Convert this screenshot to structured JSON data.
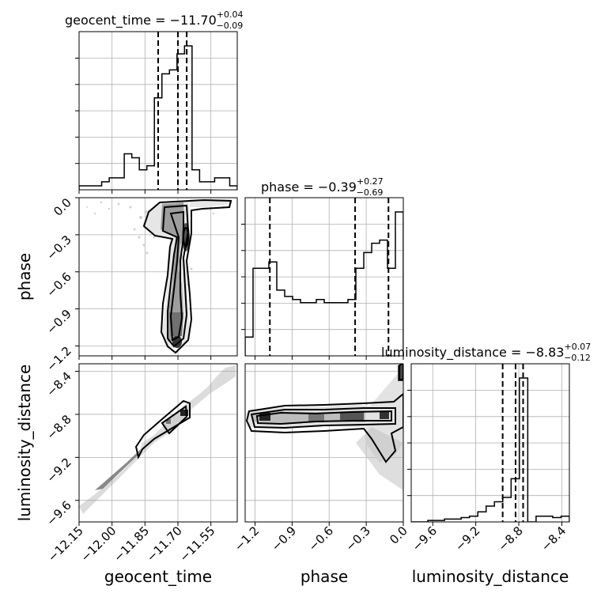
{
  "chart_data": {
    "type": "corner",
    "parameters": [
      "geocent_time",
      "phase",
      "luminosity_distance"
    ],
    "titles": [
      {
        "param": "geocent_time",
        "prefix": "geocent_time = ",
        "median": "−11.70",
        "plus": "+0.04",
        "minus": "−0.09"
      },
      {
        "param": "phase",
        "prefix": "phase = ",
        "median": "−0.39",
        "plus": "+0.27",
        "minus": "−0.69"
      },
      {
        "param": "luminosity_distance",
        "prefix": "luminosity_distance = ",
        "median": "−8.83",
        "plus": "+0.07",
        "minus": "−0.12"
      }
    ],
    "axes": {
      "geocent_time": {
        "range": [
          -12.15,
          -11.43
        ],
        "ticks": [
          -12.15,
          -12.0,
          -11.85,
          -11.7,
          -11.55
        ],
        "tick_labels": [
          "−12.15",
          "−12.00",
          "−11.85",
          "−11.70",
          "−11.55"
        ]
      },
      "phase": {
        "range": [
          -1.28,
          0.0
        ],
        "ticks": [
          -1.2,
          -0.9,
          -0.6,
          -0.3,
          0.0
        ],
        "tick_labels": [
          "−1.2",
          "−0.9",
          "−0.6",
          "−0.3",
          "0.0"
        ]
      },
      "luminosity_distance": {
        "range": [
          -9.8,
          -8.33
        ],
        "ticks": [
          -9.6,
          -9.2,
          -8.8,
          -8.4
        ],
        "tick_labels": [
          "−9.6",
          "−9.2",
          "−8.8",
          "−8.4"
        ]
      }
    },
    "histograms": {
      "geocent_time": {
        "quantiles": [
          -11.79,
          -11.7,
          -11.66
        ],
        "counts": [
          1,
          1,
          1,
          2,
          3,
          3,
          9,
          8,
          5,
          6,
          23,
          29,
          30,
          34,
          36,
          5,
          2,
          2,
          3,
          3,
          1
        ]
      },
      "phase": {
        "quantiles": [
          -1.08,
          -0.39,
          -0.12
        ],
        "counts": [
          6,
          28,
          28,
          30,
          21,
          19,
          18,
          17,
          17,
          18,
          17,
          17,
          17,
          18,
          28,
          33,
          36,
          37,
          28,
          46
        ]
      },
      "luminosity_distance": {
        "quantiles": [
          -8.95,
          -8.83,
          -8.76
        ],
        "counts": [
          0,
          0,
          1,
          1,
          2,
          2,
          3,
          4,
          7,
          11,
          14,
          17,
          30,
          100,
          0,
          4,
          4,
          3,
          4
        ]
      }
    },
    "contours_2d": [
      {
        "x": "geocent_time",
        "y": "phase",
        "type": "density_contour"
      },
      {
        "x": "geocent_time",
        "y": "luminosity_distance",
        "type": "density_contour"
      },
      {
        "x": "phase",
        "y": "luminosity_distance",
        "type": "density_contour"
      }
    ],
    "grid": true,
    "xlabels": [
      "geocent_time",
      "phase",
      "luminosity_distance"
    ],
    "ylabels": [
      "",
      "phase",
      "luminosity_distance"
    ]
  }
}
